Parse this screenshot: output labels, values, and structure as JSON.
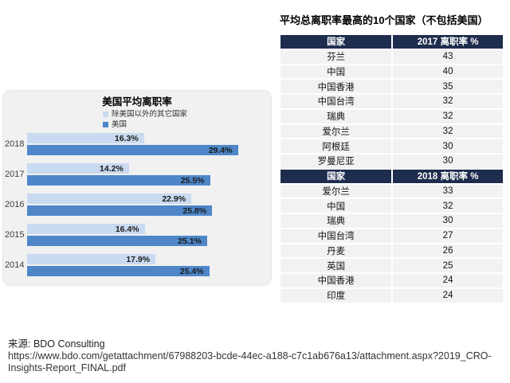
{
  "colors": {
    "header_bg": "#1e2d4d",
    "row_bg": "#f2f2f2",
    "panel_bg": "#f1f1f1",
    "series_light_blue": "#c9daf1",
    "series_dark_blue": "#4e86c8"
  },
  "chart_data": {
    "type": "bar",
    "orientation": "horizontal",
    "title": "美国平均离职率",
    "categories": [
      "2018",
      "2017",
      "2016",
      "2015",
      "2014"
    ],
    "series": [
      {
        "name": "除美国以外的其它国家",
        "color": "#c9daf1",
        "values": [
          16.3,
          14.2,
          22.9,
          16.4,
          17.9
        ]
      },
      {
        "name": "美国",
        "color": "#4e86c8",
        "values": [
          29.4,
          25.5,
          25.8,
          25.1,
          25.4
        ]
      }
    ],
    "value_suffix": "%",
    "xlim": [
      0,
      30
    ],
    "grid": false,
    "legend_position": "top"
  },
  "table": {
    "title": "平均总离职率最高的10个国家（不包括美国）",
    "sections": [
      {
        "header": {
          "country": "国家",
          "rate": "2017 离职率 %"
        },
        "rows": [
          {
            "country": "芬兰",
            "rate": "43"
          },
          {
            "country": "中国",
            "rate": "40"
          },
          {
            "country": "中国香港",
            "rate": "35"
          },
          {
            "country": "中国台湾",
            "rate": "32"
          },
          {
            "country": "瑞典",
            "rate": "32"
          },
          {
            "country": "爱尔兰",
            "rate": "32"
          },
          {
            "country": "阿根廷",
            "rate": "30"
          },
          {
            "country": "罗曼尼亚",
            "rate": "30"
          }
        ]
      },
      {
        "header": {
          "country": "国家",
          "rate": "2018 离职率 %"
        },
        "rows": [
          {
            "country": "爱尔兰",
            "rate": "33"
          },
          {
            "country": "中国",
            "rate": "32"
          },
          {
            "country": "瑞典",
            "rate": "30"
          },
          {
            "country": "中国台湾",
            "rate": "27"
          },
          {
            "country": "丹麦",
            "rate": "26"
          },
          {
            "country": "英国",
            "rate": "25"
          },
          {
            "country": "中国香港",
            "rate": "24"
          },
          {
            "country": "印度",
            "rate": "24"
          }
        ]
      }
    ]
  },
  "source": {
    "label": "来源: BDO Consulting",
    "url_lines": [
      "https://www.bdo.com/getattachment/67988203-bcde-44ec-a188-c7c1ab676a13/attachment.aspx?2019_CRO-",
      "Insights-Report_FINAL.pdf"
    ]
  }
}
